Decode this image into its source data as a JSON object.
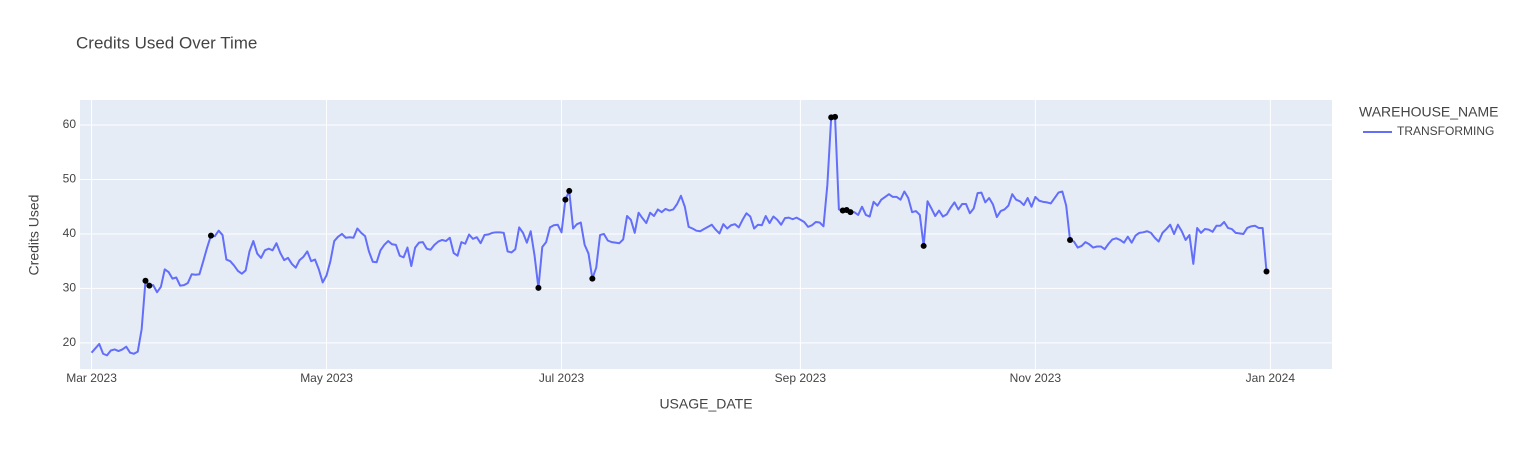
{
  "chart_data": {
    "type": "line",
    "title": "Credits Used Over Time",
    "x_label": "USAGE_DATE",
    "y_label": "Credits Used",
    "legend_title": "WAREHOUSE_NAME",
    "legend_position": "right",
    "grid": true,
    "xlim": [
      "2023-02-26",
      "2024-01-17"
    ],
    "xticks": [
      {
        "value": "2023-03-01",
        "label": "Mar 2023"
      },
      {
        "value": "2023-05-01",
        "label": "May 2023"
      },
      {
        "value": "2023-07-01",
        "label": "Jul 2023"
      },
      {
        "value": "2023-09-01",
        "label": "Sep 2023"
      },
      {
        "value": "2023-11-01",
        "label": "Nov 2023"
      },
      {
        "value": "2024-01-01",
        "label": "Jan 2024"
      }
    ],
    "ylim": [
      15.2,
      64.6
    ],
    "yticks": [
      20,
      30,
      40,
      50,
      60
    ],
    "x": [
      "2023-03-01",
      "2023-03-02",
      "2023-03-03",
      "2023-03-04",
      "2023-03-05",
      "2023-03-06",
      "2023-03-07",
      "2023-03-08",
      "2023-03-09",
      "2023-03-10",
      "2023-03-11",
      "2023-03-12",
      "2023-03-13",
      "2023-03-14",
      "2023-03-15",
      "2023-03-16",
      "2023-03-17",
      "2023-03-18",
      "2023-03-19",
      "2023-03-20",
      "2023-03-21",
      "2023-03-22",
      "2023-03-23",
      "2023-03-24",
      "2023-03-25",
      "2023-03-26",
      "2023-03-27",
      "2023-03-28",
      "2023-03-29",
      "2023-03-30",
      "2023-03-31",
      "2023-04-01",
      "2023-04-02",
      "2023-04-03",
      "2023-04-04",
      "2023-04-05",
      "2023-04-06",
      "2023-04-07",
      "2023-04-08",
      "2023-04-09",
      "2023-04-10",
      "2023-04-11",
      "2023-04-12",
      "2023-04-13",
      "2023-04-14",
      "2023-04-15",
      "2023-04-16",
      "2023-04-17",
      "2023-04-18",
      "2023-04-19",
      "2023-04-20",
      "2023-04-21",
      "2023-04-22",
      "2023-04-23",
      "2023-04-24",
      "2023-04-25",
      "2023-04-26",
      "2023-04-27",
      "2023-04-28",
      "2023-04-29",
      "2023-04-30",
      "2023-05-01",
      "2023-05-02",
      "2023-05-03",
      "2023-05-04",
      "2023-05-05",
      "2023-05-06",
      "2023-05-07",
      "2023-05-08",
      "2023-05-09",
      "2023-05-10",
      "2023-05-11",
      "2023-05-12",
      "2023-05-13",
      "2023-05-14",
      "2023-05-15",
      "2023-05-16",
      "2023-05-17",
      "2023-05-18",
      "2023-05-19",
      "2023-05-20",
      "2023-05-21",
      "2023-05-22",
      "2023-05-23",
      "2023-05-24",
      "2023-05-25",
      "2023-05-26",
      "2023-05-27",
      "2023-05-28",
      "2023-05-29",
      "2023-05-30",
      "2023-05-31",
      "2023-06-01",
      "2023-06-02",
      "2023-06-03",
      "2023-06-04",
      "2023-06-05",
      "2023-06-06",
      "2023-06-07",
      "2023-06-08",
      "2023-06-09",
      "2023-06-10",
      "2023-06-11",
      "2023-06-12",
      "2023-06-13",
      "2023-06-14",
      "2023-06-15",
      "2023-06-16",
      "2023-06-17",
      "2023-06-18",
      "2023-06-19",
      "2023-06-20",
      "2023-06-21",
      "2023-06-22",
      "2023-06-23",
      "2023-06-24",
      "2023-06-25",
      "2023-06-26",
      "2023-06-27",
      "2023-06-28",
      "2023-06-29",
      "2023-06-30",
      "2023-07-01",
      "2023-07-02",
      "2023-07-03",
      "2023-07-04",
      "2023-07-05",
      "2023-07-06",
      "2023-07-07",
      "2023-07-08",
      "2023-07-09",
      "2023-07-10",
      "2023-07-11",
      "2023-07-12",
      "2023-07-13",
      "2023-07-14",
      "2023-07-15",
      "2023-07-16",
      "2023-07-17",
      "2023-07-18",
      "2023-07-19",
      "2023-07-20",
      "2023-07-21",
      "2023-07-22",
      "2023-07-23",
      "2023-07-24",
      "2023-07-25",
      "2023-07-26",
      "2023-07-27",
      "2023-07-28",
      "2023-07-29",
      "2023-07-30",
      "2023-07-31",
      "2023-08-01",
      "2023-08-02",
      "2023-08-03",
      "2023-08-04",
      "2023-08-05",
      "2023-08-06",
      "2023-08-07",
      "2023-08-08",
      "2023-08-09",
      "2023-08-10",
      "2023-08-11",
      "2023-08-12",
      "2023-08-13",
      "2023-08-14",
      "2023-08-15",
      "2023-08-16",
      "2023-08-17",
      "2023-08-18",
      "2023-08-19",
      "2023-08-20",
      "2023-08-21",
      "2023-08-22",
      "2023-08-23",
      "2023-08-24",
      "2023-08-25",
      "2023-08-26",
      "2023-08-27",
      "2023-08-28",
      "2023-08-29",
      "2023-08-30",
      "2023-08-31",
      "2023-09-01",
      "2023-09-02",
      "2023-09-03",
      "2023-09-04",
      "2023-09-05",
      "2023-09-06",
      "2023-09-07",
      "2023-09-08",
      "2023-09-09",
      "2023-09-10",
      "2023-09-11",
      "2023-09-12",
      "2023-09-13",
      "2023-09-14",
      "2023-09-15",
      "2023-09-16",
      "2023-09-17",
      "2023-09-18",
      "2023-09-19",
      "2023-09-20",
      "2023-09-21",
      "2023-09-22",
      "2023-09-23",
      "2023-09-24",
      "2023-09-25",
      "2023-09-26",
      "2023-09-27",
      "2023-09-28",
      "2023-09-29",
      "2023-09-30",
      "2023-10-01",
      "2023-10-02",
      "2023-10-03",
      "2023-10-04",
      "2023-10-05",
      "2023-10-06",
      "2023-10-07",
      "2023-10-08",
      "2023-10-09",
      "2023-10-10",
      "2023-10-11",
      "2023-10-12",
      "2023-10-13",
      "2023-10-14",
      "2023-10-15",
      "2023-10-16",
      "2023-10-17",
      "2023-10-18",
      "2023-10-19",
      "2023-10-20",
      "2023-10-21",
      "2023-10-22",
      "2023-10-23",
      "2023-10-24",
      "2023-10-25",
      "2023-10-26",
      "2023-10-27",
      "2023-10-28",
      "2023-10-29",
      "2023-10-30",
      "2023-10-31",
      "2023-11-01",
      "2023-11-02",
      "2023-11-03",
      "2023-11-04",
      "2023-11-05",
      "2023-11-06",
      "2023-11-07",
      "2023-11-08",
      "2023-11-09",
      "2023-11-10",
      "2023-11-11",
      "2023-11-12",
      "2023-11-13",
      "2023-11-14",
      "2023-11-15",
      "2023-11-16",
      "2023-11-17",
      "2023-11-18",
      "2023-11-19",
      "2023-11-20",
      "2023-11-21",
      "2023-11-22",
      "2023-11-23",
      "2023-11-24",
      "2023-11-25",
      "2023-11-26",
      "2023-11-27",
      "2023-11-28",
      "2023-11-29",
      "2023-11-30",
      "2023-12-01",
      "2023-12-02",
      "2023-12-03",
      "2023-12-04",
      "2023-12-05",
      "2023-12-06",
      "2023-12-07",
      "2023-12-08",
      "2023-12-09",
      "2023-12-10",
      "2023-12-11",
      "2023-12-12",
      "2023-12-13",
      "2023-12-14",
      "2023-12-15",
      "2023-12-16",
      "2023-12-17",
      "2023-12-18",
      "2023-12-19",
      "2023-12-20",
      "2023-12-21",
      "2023-12-22",
      "2023-12-23",
      "2023-12-24",
      "2023-12-25",
      "2023-12-26",
      "2023-12-27",
      "2023-12-28",
      "2023-12-29",
      "2023-12-30",
      "2023-12-31"
    ],
    "series": [
      {
        "name": "TRANSFORMING",
        "color": "#636efa",
        "values": [
          18.2,
          19.0,
          19.8,
          18.0,
          17.7,
          18.6,
          18.8,
          18.5,
          18.8,
          19.3,
          18.2,
          18.0,
          18.4,
          22.5,
          31.4,
          30.5,
          30.6,
          29.3,
          30.3,
          33.5,
          33.0,
          31.8,
          32.0,
          30.5,
          30.6,
          31.0,
          32.6,
          32.5,
          32.6,
          35.0,
          37.5,
          39.7,
          39.6,
          40.6,
          39.8,
          35.3,
          35.0,
          34.2,
          33.2,
          32.7,
          33.3,
          36.8,
          38.7,
          36.4,
          35.6,
          37.0,
          37.3,
          37.0,
          38.3,
          36.5,
          35.2,
          35.6,
          34.5,
          33.8,
          35.2,
          35.8,
          36.8,
          35.0,
          35.3,
          33.5,
          31.1,
          32.4,
          35.0,
          38.7,
          39.5,
          40.0,
          39.3,
          39.4,
          39.3,
          41.0,
          40.2,
          39.6,
          36.8,
          34.9,
          34.8,
          37.0,
          38.0,
          38.7,
          38.1,
          38.0,
          36.0,
          35.7,
          37.5,
          34.1,
          37.5,
          38.4,
          38.5,
          37.3,
          37.1,
          38.0,
          38.6,
          38.9,
          38.7,
          39.3,
          36.5,
          36.0,
          38.5,
          38.2,
          39.9,
          39.1,
          39.4,
          38.3,
          39.8,
          39.9,
          40.2,
          40.3,
          40.3,
          40.2,
          36.8,
          36.6,
          37.2,
          41.2,
          40.2,
          38.4,
          40.5,
          36.0,
          30.1,
          37.6,
          38.5,
          41.2,
          41.6,
          41.7,
          40.3,
          46.3,
          47.9,
          41.0,
          41.8,
          42.1,
          38.0,
          36.4,
          31.8,
          33.8,
          39.8,
          40.0,
          38.8,
          38.5,
          38.4,
          38.3,
          39.0,
          43.3,
          42.6,
          40.2,
          43.9,
          42.9,
          42.0,
          43.9,
          43.3,
          44.5,
          44.0,
          44.6,
          44.3,
          44.5,
          45.5,
          47.0,
          45.0,
          41.3,
          41.0,
          40.6,
          40.5,
          40.9,
          41.3,
          41.7,
          40.8,
          40.1,
          41.8,
          41.0,
          41.6,
          41.8,
          41.2,
          42.6,
          43.8,
          43.2,
          41.0,
          41.7,
          41.6,
          43.3,
          42.0,
          43.2,
          42.6,
          41.7,
          42.9,
          43.0,
          42.7,
          43.0,
          42.6,
          42.2,
          41.3,
          41.6,
          42.2,
          42.1,
          41.4,
          49.0,
          61.4,
          61.5,
          44.5,
          44.3,
          44.4,
          44.0,
          44.0,
          43.5,
          45.0,
          43.5,
          43.2,
          45.9,
          45.2,
          46.3,
          46.8,
          47.3,
          46.8,
          46.8,
          46.3,
          47.8,
          46.6,
          44.0,
          44.2,
          43.5,
          37.8,
          46.0,
          44.7,
          43.3,
          44.3,
          43.2,
          43.6,
          44.8,
          45.8,
          44.5,
          45.5,
          45.5,
          43.8,
          44.7,
          47.5,
          47.6,
          45.8,
          46.6,
          45.4,
          43.1,
          44.2,
          44.5,
          45.2,
          47.3,
          46.3,
          46.0,
          45.3,
          46.6,
          45.0,
          46.8,
          46.1,
          45.9,
          45.8,
          45.6,
          46.6,
          47.6,
          47.8,
          45.2,
          38.9,
          38.6,
          37.5,
          37.8,
          38.5,
          38.1,
          37.5,
          37.7,
          37.7,
          37.2,
          38.2,
          39.0,
          39.2,
          38.9,
          38.4,
          39.5,
          38.4,
          39.7,
          40.2,
          40.3,
          40.5,
          40.2,
          39.3,
          38.6,
          40.2,
          40.9,
          41.7,
          40.0,
          41.7,
          40.5,
          38.9,
          39.8,
          34.5,
          41.1,
          40.2,
          40.9,
          40.8,
          40.4,
          41.5,
          41.5,
          42.2,
          41.1,
          40.9,
          40.2,
          40.1,
          40.0,
          41.1,
          41.4,
          41.5,
          41.1,
          41.1,
          33.1
        ]
      }
    ],
    "markers": {
      "color": "#000000",
      "x": [
        "2023-03-15",
        "2023-03-16",
        "2023-04-01",
        "2023-06-25",
        "2023-07-02",
        "2023-07-03",
        "2023-07-09",
        "2023-09-09",
        "2023-09-10",
        "2023-09-12",
        "2023-09-13",
        "2023-09-14",
        "2023-10-03",
        "2023-11-10",
        "2023-12-31"
      ],
      "values": [
        31.4,
        30.5,
        39.7,
        30.1,
        46.3,
        47.9,
        31.8,
        61.4,
        61.5,
        44.3,
        44.4,
        44.0,
        37.8,
        38.9,
        33.1
      ]
    }
  }
}
